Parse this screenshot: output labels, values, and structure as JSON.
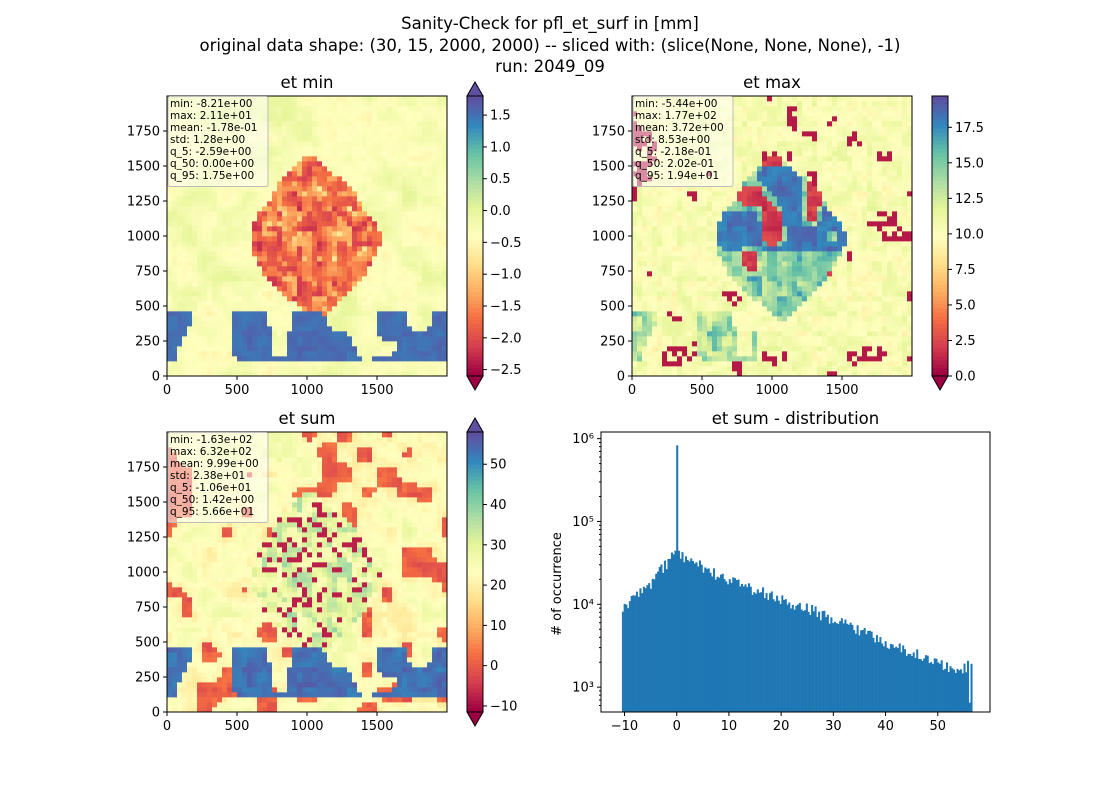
{
  "suptitle": [
    "Sanity-Check for pfl_et_surf in [mm]",
    "original data shape: (30, 15, 2000, 2000) -- sliced with: (slice(None, None, None), -1)",
    "run: 2049_09"
  ],
  "colormap": "Spectral",
  "chart_data": [
    {
      "type": "heatmap",
      "title": "et min",
      "colormap": "Spectral",
      "colorbar_extend": "both",
      "xlim": [
        0,
        2000
      ],
      "ylim": [
        0,
        2000
      ],
      "xticks": [
        0,
        500,
        1000,
        1500
      ],
      "yticks": [
        0,
        250,
        500,
        750,
        1000,
        1250,
        1500,
        1750
      ],
      "clim": [
        -2.6,
        1.8
      ],
      "cbar_ticks": [
        {
          "value": 1.5,
          "label": "1.5"
        },
        {
          "value": 1.0,
          "label": "1.0"
        },
        {
          "value": 0.5,
          "label": "0.5"
        },
        {
          "value": 0.0,
          "label": "0.0"
        },
        {
          "value": -0.5,
          "label": "−0.5"
        },
        {
          "value": -1.0,
          "label": "−1.0"
        },
        {
          "value": -1.5,
          "label": "−1.5"
        },
        {
          "value": -2.0,
          "label": "−2.0"
        },
        {
          "value": -2.5,
          "label": "−2.5"
        }
      ],
      "stats": [
        "min: -8.21e+00",
        "max: 2.11e+01",
        "mean: -1.78e-01",
        "std: 1.28e+00",
        "q_5: -2.59e+00",
        "q_50: 0.00e+00",
        "q_95: 1.75e+00"
      ]
    },
    {
      "type": "heatmap",
      "title": "et max",
      "colormap": "Spectral",
      "colorbar_extend": "min",
      "xlim": [
        0,
        2000
      ],
      "ylim": [
        0,
        2000
      ],
      "xticks": [
        0,
        500,
        1000,
        1500
      ],
      "yticks": [
        0,
        250,
        500,
        750,
        1000,
        1250,
        1500,
        1750
      ],
      "clim": [
        0,
        19.7
      ],
      "cbar_ticks": [
        {
          "value": 17.5,
          "label": "17.5"
        },
        {
          "value": 15.0,
          "label": "15.0"
        },
        {
          "value": 12.5,
          "label": "12.5"
        },
        {
          "value": 10.0,
          "label": "10.0"
        },
        {
          "value": 7.5,
          "label": "7.5"
        },
        {
          "value": 5.0,
          "label": "5.0"
        },
        {
          "value": 2.5,
          "label": "2.5"
        },
        {
          "value": 0.0,
          "label": "0.0"
        }
      ],
      "stats": [
        "min: -5.44e+00",
        "max: 1.77e+02",
        "mean: 3.72e+00",
        "std: 8.53e+00",
        "q_5: -2.18e-01",
        "q_50: 2.02e-01",
        "q_95: 1.94e+01"
      ]
    },
    {
      "type": "heatmap",
      "title": "et sum",
      "colormap": "Spectral",
      "colorbar_extend": "both",
      "xlim": [
        0,
        2000
      ],
      "ylim": [
        0,
        2000
      ],
      "xticks": [
        0,
        500,
        1000,
        1500
      ],
      "yticks": [
        0,
        250,
        500,
        750,
        1000,
        1250,
        1500,
        1750
      ],
      "clim": [
        -11.5,
        58
      ],
      "cbar_ticks": [
        {
          "value": 50,
          "label": "50"
        },
        {
          "value": 40,
          "label": "40"
        },
        {
          "value": 30,
          "label": "30"
        },
        {
          "value": 20,
          "label": "20"
        },
        {
          "value": 10,
          "label": "10"
        },
        {
          "value": 0,
          "label": "0"
        },
        {
          "value": -10,
          "label": "−10"
        }
      ],
      "stats": [
        "min: -1.63e+02",
        "max: 6.32e+02",
        "mean: 9.99e+00",
        "std: 2.38e+01",
        "q_5: -1.06e+01",
        "q_50: 1.42e+00",
        "q_95: 5.66e+01"
      ]
    },
    {
      "type": "bar",
      "title": "et sum - distribution",
      "ylabel": "# of occurrence",
      "xlabel": "",
      "yscale": "log",
      "bar_color": "#1f77b4",
      "xlim": [
        -14.5,
        60
      ],
      "ylim_log10": [
        2.7,
        6.08
      ],
      "xticks": [
        {
          "value": -10,
          "label": "−10"
        },
        {
          "value": 0,
          "label": "0"
        },
        {
          "value": 10,
          "label": "10"
        },
        {
          "value": 20,
          "label": "20"
        },
        {
          "value": 30,
          "label": "30"
        },
        {
          "value": 40,
          "label": "40"
        },
        {
          "value": 50,
          "label": "50"
        }
      ],
      "yticks": [
        {
          "exp": 3,
          "label": "10³"
        },
        {
          "exp": 4,
          "label": "10⁴"
        },
        {
          "exp": 5,
          "label": "10⁵"
        },
        {
          "exp": 6,
          "label": "10⁶"
        }
      ],
      "bin_start": -10.5,
      "bin_end": 56.6,
      "bin_count": 200,
      "peak": {
        "x": 0.0,
        "count": 830000
      },
      "profile": [
        {
          "x": -10.5,
          "count": 9000
        },
        {
          "x": -9,
          "count": 11000
        },
        {
          "x": -7,
          "count": 13500
        },
        {
          "x": -5,
          "count": 18000
        },
        {
          "x": -3,
          "count": 26000
        },
        {
          "x": -1.5,
          "count": 34000
        },
        {
          "x": -0.5,
          "count": 40000
        },
        {
          "x": 0.5,
          "count": 38000
        },
        {
          "x": 2,
          "count": 36000
        },
        {
          "x": 5,
          "count": 28000
        },
        {
          "x": 10,
          "count": 19000
        },
        {
          "x": 15,
          "count": 15000
        },
        {
          "x": 20,
          "count": 11500
        },
        {
          "x": 25,
          "count": 9000
        },
        {
          "x": 30,
          "count": 6500
        },
        {
          "x": 35,
          "count": 5000
        },
        {
          "x": 40,
          "count": 3500
        },
        {
          "x": 45,
          "count": 2600
        },
        {
          "x": 50,
          "count": 2000
        },
        {
          "x": 54,
          "count": 1600
        },
        {
          "x": 56.6,
          "count": 1900
        }
      ]
    }
  ]
}
